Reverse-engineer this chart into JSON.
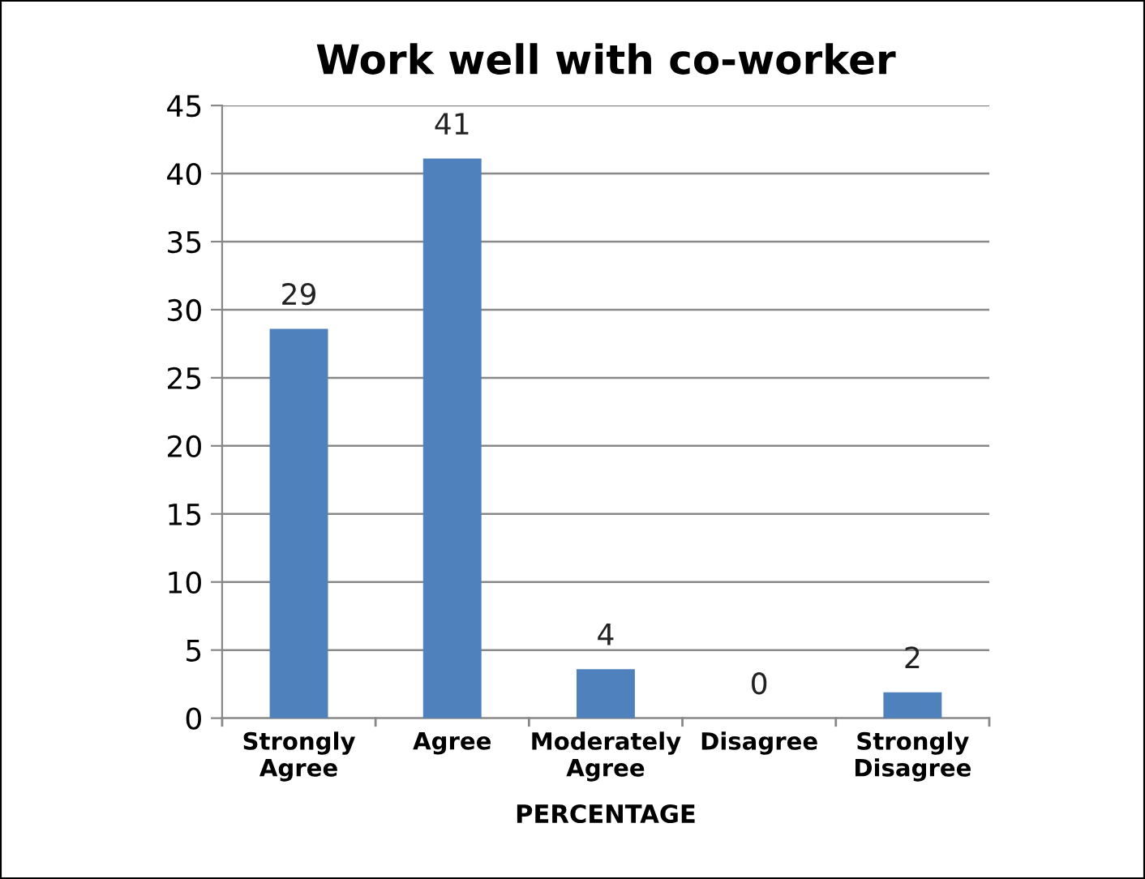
{
  "chart_data": {
    "type": "bar",
    "title": "Work well with co-worker",
    "xlabel": "PERCENTAGE",
    "categories": [
      "Strongly\nAgree",
      "Agree",
      "Moderately\nAgree",
      "Disagree",
      "Strongly\nDisagree"
    ],
    "values": [
      28.6,
      41.1,
      3.6,
      0,
      1.9
    ],
    "value_labels": [
      "29",
      "41",
      "4",
      "0",
      "2"
    ],
    "color": "#4f81bd",
    "ylim": [
      0,
      45
    ],
    "yticks": [
      0,
      5,
      10,
      15,
      20,
      25,
      30,
      35,
      40,
      45
    ],
    "grid": "y",
    "legend": false
  }
}
